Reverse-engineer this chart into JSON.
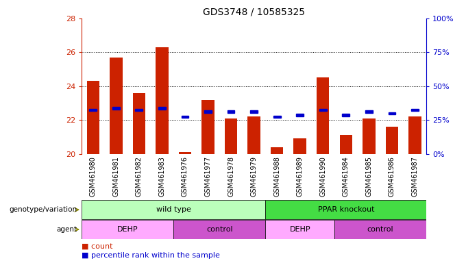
{
  "title": "GDS3748 / 10585325",
  "samples": [
    "GSM461980",
    "GSM461981",
    "GSM461982",
    "GSM461983",
    "GSM461976",
    "GSM461977",
    "GSM461978",
    "GSM461979",
    "GSM461988",
    "GSM461989",
    "GSM461990",
    "GSM461984",
    "GSM461985",
    "GSM461986",
    "GSM461987"
  ],
  "bar_heights": [
    24.3,
    25.7,
    23.6,
    26.3,
    20.1,
    23.2,
    22.1,
    22.2,
    20.4,
    20.9,
    24.5,
    21.1,
    22.1,
    21.6,
    22.2
  ],
  "blue_vals": [
    22.6,
    22.7,
    22.6,
    22.7,
    22.2,
    22.5,
    22.5,
    22.5,
    22.2,
    22.3,
    22.6,
    22.3,
    22.5,
    22.4,
    22.6
  ],
  "bar_bottom": 20.0,
  "ylim": [
    20.0,
    28.0
  ],
  "right_ylim": [
    0,
    100
  ],
  "right_yticks": [
    0,
    25,
    50,
    75,
    100
  ],
  "right_yticklabels": [
    "0%",
    "25%",
    "50%",
    "75%",
    "100%"
  ],
  "yticks": [
    20,
    22,
    24,
    26,
    28
  ],
  "bar_color": "#cc2200",
  "blue_color": "#0000cc",
  "bar_width": 0.55,
  "plot_bg": "#ffffff",
  "xtick_bg": "#d8d8d8",
  "label_row1_groups": [
    {
      "label": "wild type",
      "start": 0,
      "end": 7,
      "color": "#bbffbb"
    },
    {
      "label": "PPAR knockout",
      "start": 8,
      "end": 14,
      "color": "#44dd44"
    }
  ],
  "label_row2_groups": [
    {
      "label": "DEHP",
      "start": 0,
      "end": 3,
      "color": "#ffaaff"
    },
    {
      "label": "control",
      "start": 4,
      "end": 7,
      "color": "#cc55cc"
    },
    {
      "label": "DEHP",
      "start": 8,
      "end": 10,
      "color": "#ffaaff"
    },
    {
      "label": "control",
      "start": 11,
      "end": 14,
      "color": "#cc55cc"
    }
  ],
  "legend_count_color": "#cc2200",
  "legend_blue_color": "#0000cc",
  "xlabel_row1": "genotype/variation",
  "xlabel_row2": "agent"
}
